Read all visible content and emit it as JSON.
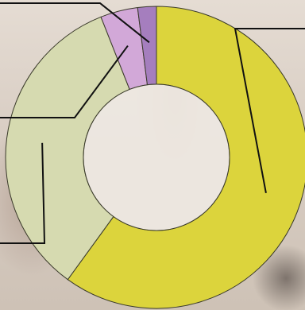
{
  "chart_data": {
    "type": "pie",
    "variant": "donut",
    "title": "",
    "slices": [
      {
        "value": 60,
        "color": "#dcd43c"
      },
      {
        "value": 34,
        "color": "#d6dab0"
      },
      {
        "value": 4,
        "color": "#d2a8d8"
      },
      {
        "value": 2,
        "color": "#a57ebe"
      }
    ],
    "legend": "none",
    "data_labels": "none"
  }
}
